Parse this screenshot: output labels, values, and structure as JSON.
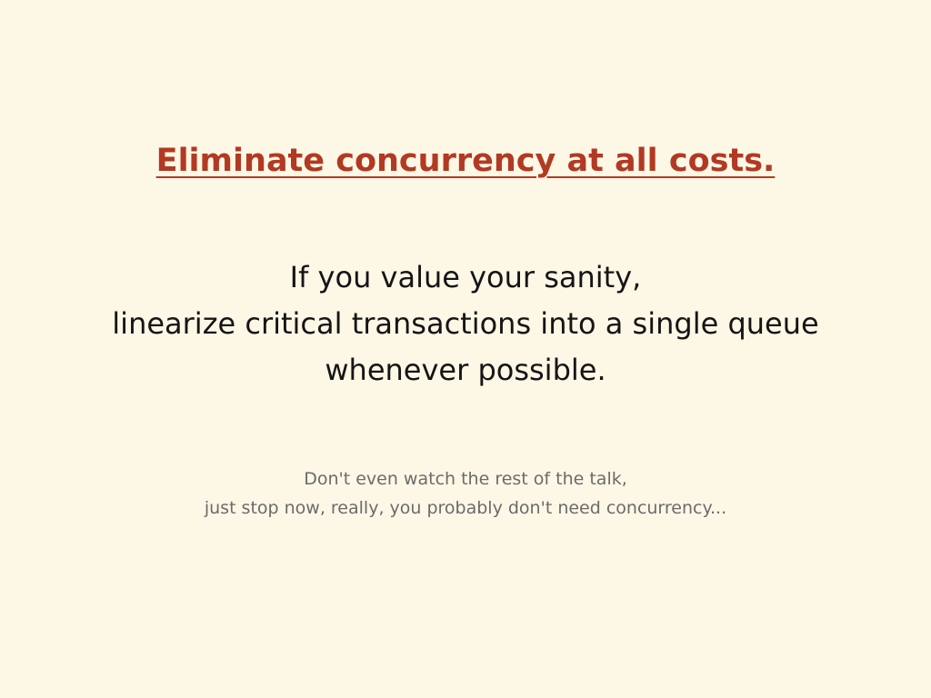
{
  "slide": {
    "title": "Eliminate concurrency at all costs.",
    "body_lines": [
      "If you value your sanity,",
      "linearize critical transactions into a single queue",
      "whenever possible."
    ],
    "note_lines": [
      "Don't even watch the rest of the talk,",
      "just stop now, really, you probably don't need concurrency..."
    ]
  },
  "colors": {
    "background": "#fdf7e6",
    "title": "#b23a22",
    "body": "#151515",
    "note": "#6b6b6b"
  }
}
